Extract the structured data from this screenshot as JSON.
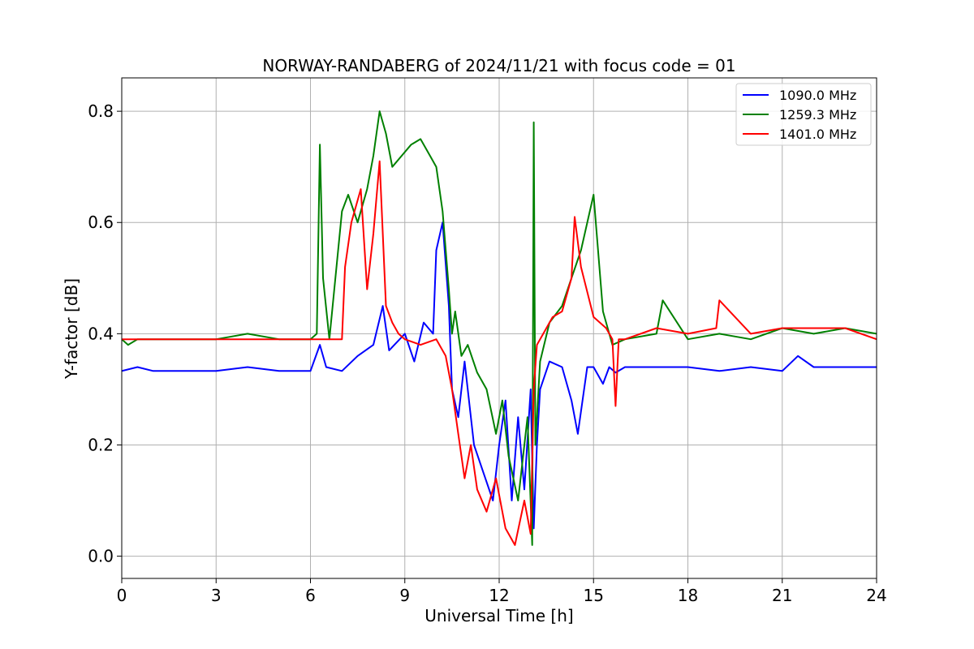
{
  "chart_data": {
    "type": "line",
    "title": "NORWAY-RANDABERG of 2024/11/21 with focus code = 01",
    "xlabel": "Universal Time [h]",
    "ylabel": "Y-factor [dB]",
    "xlim": [
      0,
      24
    ],
    "ylim": [
      -0.04,
      0.86
    ],
    "xticks": [
      0,
      3,
      6,
      9,
      12,
      15,
      18,
      21,
      24
    ],
    "xtick_labels": [
      "0",
      "3",
      "6",
      "9",
      "12",
      "15",
      "18",
      "21",
      "24"
    ],
    "yticks": [
      0.0,
      0.2,
      0.4,
      0.6,
      0.8
    ],
    "ytick_labels": [
      "0.0",
      "0.2",
      "0.4",
      "0.6",
      "0.8"
    ],
    "grid": true,
    "legend_position": "top-right",
    "series": [
      {
        "name": "1090.0 MHz",
        "color": "#0000ff",
        "x": [
          0,
          0.5,
          1,
          2,
          3,
          4,
          5,
          6,
          6.3,
          6.5,
          7,
          7.5,
          8,
          8.3,
          8.5,
          9,
          9.3,
          9.6,
          9.9,
          10,
          10.2,
          10.4,
          10.5,
          10.7,
          10.9,
          11.2,
          11.5,
          11.8,
          12,
          12.2,
          12.4,
          12.6,
          12.8,
          13,
          13.1,
          13.2,
          13.3,
          13.6,
          14,
          14.3,
          14.5,
          14.8,
          15,
          15.3,
          15.5,
          15.7,
          16,
          17,
          18,
          19,
          20,
          21,
          21.5,
          22,
          23,
          24
        ],
        "y": [
          0.333,
          0.34,
          0.333,
          0.333,
          0.333,
          0.34,
          0.333,
          0.333,
          0.38,
          0.34,
          0.333,
          0.36,
          0.38,
          0.45,
          0.37,
          0.4,
          0.35,
          0.42,
          0.4,
          0.55,
          0.6,
          0.45,
          0.3,
          0.25,
          0.35,
          0.2,
          0.15,
          0.1,
          0.2,
          0.28,
          0.1,
          0.25,
          0.12,
          0.3,
          0.05,
          0.2,
          0.3,
          0.35,
          0.34,
          0.28,
          0.22,
          0.34,
          0.34,
          0.31,
          0.34,
          0.33,
          0.34,
          0.34,
          0.34,
          0.333,
          0.34,
          0.333,
          0.36,
          0.34,
          0.34,
          0.34
        ]
      },
      {
        "name": "1259.3 MHz",
        "color": "#008000",
        "x": [
          0,
          0.2,
          0.5,
          1,
          2,
          3,
          4,
          5,
          6,
          6.2,
          6.3,
          6.4,
          6.6,
          7,
          7.2,
          7.5,
          7.8,
          8,
          8.2,
          8.4,
          8.6,
          8.9,
          9.2,
          9.5,
          9.8,
          10,
          10.2,
          10.4,
          10.5,
          10.6,
          10.8,
          11,
          11.3,
          11.6,
          11.9,
          12.1,
          12.3,
          12.6,
          12.9,
          13.05,
          13.1,
          13.15,
          13.3,
          13.6,
          14,
          14.3,
          14.6,
          15,
          15.3,
          15.6,
          16,
          17,
          17.2,
          18,
          19,
          20,
          21,
          22,
          23,
          24
        ],
        "y": [
          0.39,
          0.38,
          0.39,
          0.39,
          0.39,
          0.39,
          0.4,
          0.39,
          0.39,
          0.4,
          0.74,
          0.5,
          0.39,
          0.62,
          0.65,
          0.6,
          0.66,
          0.72,
          0.8,
          0.76,
          0.7,
          0.72,
          0.74,
          0.75,
          0.72,
          0.7,
          0.62,
          0.48,
          0.4,
          0.44,
          0.36,
          0.38,
          0.33,
          0.3,
          0.22,
          0.28,
          0.18,
          0.1,
          0.25,
          0.02,
          0.78,
          0.2,
          0.35,
          0.42,
          0.45,
          0.5,
          0.55,
          0.65,
          0.44,
          0.38,
          0.39,
          0.4,
          0.46,
          0.39,
          0.4,
          0.39,
          0.41,
          0.4,
          0.41,
          0.4
        ]
      },
      {
        "name": "1401.0 MHz",
        "color": "#ff0000",
        "x": [
          0,
          0.5,
          1,
          2,
          3,
          4,
          5,
          6,
          6.5,
          7,
          7.1,
          7.3,
          7.6,
          7.8,
          8,
          8.2,
          8.4,
          8.6,
          8.8,
          9,
          9.5,
          10,
          10.3,
          10.5,
          10.7,
          10.9,
          11.1,
          11.3,
          11.6,
          11.9,
          12.2,
          12.5,
          12.8,
          13,
          13.1,
          13.2,
          13.4,
          13.7,
          14,
          14.3,
          14.4,
          14.6,
          15,
          15.4,
          15.6,
          15.7,
          15.8,
          16,
          17,
          18,
          18.9,
          19,
          20,
          21,
          22,
          23,
          24
        ],
        "y": [
          0.39,
          0.39,
          0.39,
          0.39,
          0.39,
          0.39,
          0.39,
          0.39,
          0.39,
          0.39,
          0.52,
          0.6,
          0.66,
          0.48,
          0.58,
          0.71,
          0.45,
          0.42,
          0.4,
          0.39,
          0.38,
          0.39,
          0.36,
          0.3,
          0.22,
          0.14,
          0.2,
          0.12,
          0.08,
          0.14,
          0.05,
          0.02,
          0.1,
          0.04,
          0.3,
          0.38,
          0.4,
          0.43,
          0.44,
          0.5,
          0.61,
          0.52,
          0.43,
          0.41,
          0.39,
          0.27,
          0.39,
          0.39,
          0.41,
          0.4,
          0.41,
          0.46,
          0.4,
          0.41,
          0.41,
          0.41,
          0.39
        ]
      }
    ]
  }
}
